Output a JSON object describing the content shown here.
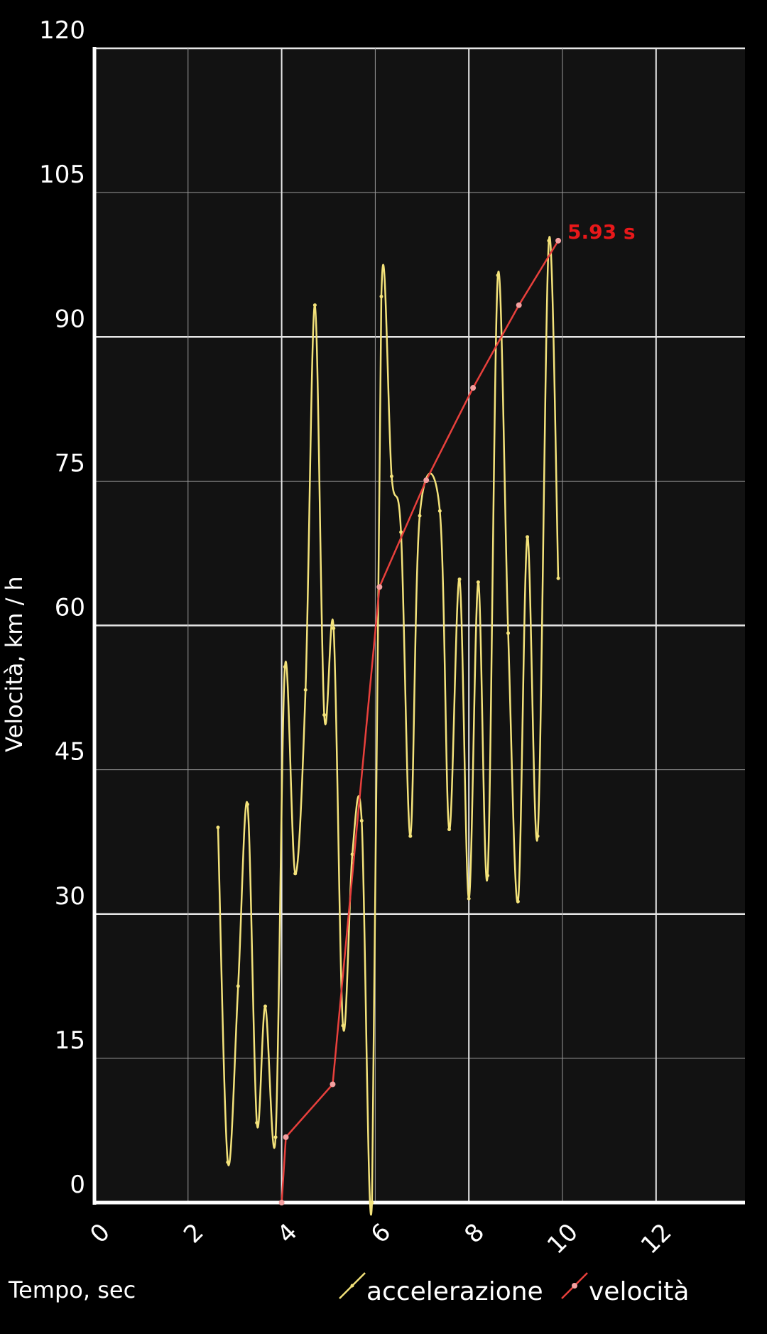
{
  "chart_data": {
    "type": "line",
    "y_label": "Velocità, km / h",
    "x_label": "Tempo, sec",
    "annotation": "5.93 s",
    "xlim": [
      0,
      13.9
    ],
    "xticks": [
      0,
      2,
      4,
      6,
      8,
      10,
      12
    ],
    "ylim": [
      0,
      120
    ],
    "yticks": [
      0,
      15,
      30,
      45,
      60,
      75,
      90,
      105,
      120
    ],
    "grid": true,
    "smooth": true,
    "series": [
      {
        "name": "accelerazione",
        "color": "#f3e27a",
        "x": [
          2.64,
          2.85,
          3.07,
          3.27,
          3.47,
          3.65,
          3.87,
          4.07,
          4.29,
          4.51,
          4.71,
          4.91,
          5.11,
          5.31,
          5.51,
          5.71,
          5.93,
          6.13,
          6.35,
          6.55,
          6.75,
          6.95,
          7.38,
          7.58,
          7.8,
          8.0,
          8.2,
          8.4,
          8.62,
          8.84,
          9.05,
          9.25,
          9.47,
          9.71,
          9.91
        ],
        "values": [
          39.0,
          4.2,
          22.5,
          41.4,
          8.3,
          20.4,
          6.8,
          55.7,
          34.2,
          53.3,
          93.3,
          50.7,
          59.7,
          18.4,
          36.2,
          39.7,
          0,
          94.2,
          75.5,
          69.7,
          38.1,
          71.4,
          71.9,
          38.8,
          64.8,
          31.6,
          64.5,
          34.0,
          96.4,
          59.2,
          31.3,
          69.2,
          38.1,
          100,
          64.9
        ]
      },
      {
        "name": "velocità",
        "color": "#e8403c",
        "x": [
          4.0,
          4.09,
          5.09,
          6.09,
          7.09,
          8.09,
          9.07,
          9.91
        ],
        "values": [
          0,
          6.8,
          12.3,
          64.0,
          75.1,
          84.7,
          93.3,
          100.0
        ]
      }
    ]
  }
}
